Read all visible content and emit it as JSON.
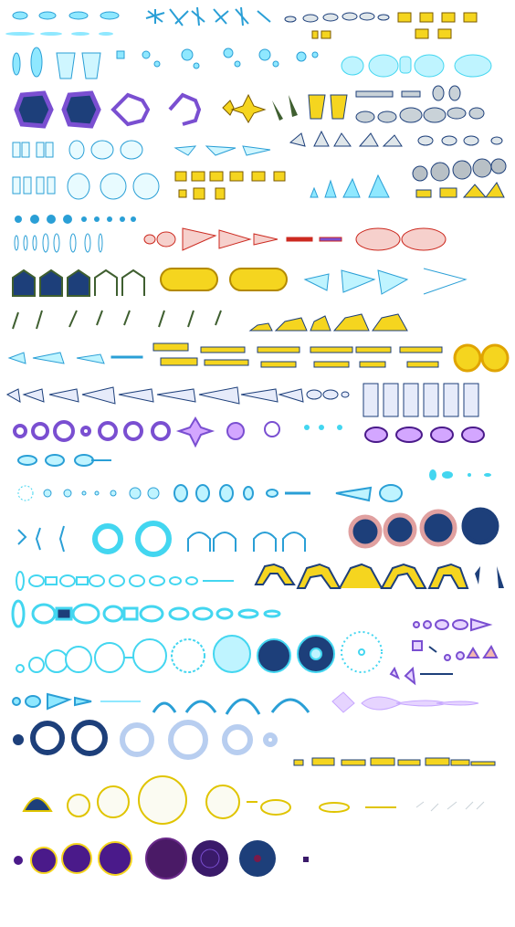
{
  "title": "",
  "palette": {
    "cyan_light": "#bff4ff",
    "cyan": "#43d6f0",
    "cyan_dark": "#2a9fd6",
    "blue_dark": "#1d3f7a",
    "navy": "#0f2f66",
    "purple": "#7a4fd1",
    "purple_dark": "#4a1a8a",
    "violet": "#d3a6ff",
    "yellow": "#f5d51f",
    "gold": "#e0a400",
    "red": "#cc2a20",
    "pink": "#f3b7b0",
    "green_dark": "#3f5f30",
    "gray": "#9aa6b0",
    "white": "#ffffff"
  },
  "sprite_rows": [
    {
      "name": "row-01",
      "items": [
        "orb",
        "orb",
        "orb",
        "orb",
        "spark",
        "spark",
        "spark",
        "spark",
        "spark",
        "blob",
        "blob",
        "blob",
        "blob",
        "blob",
        "block",
        "block",
        "block",
        "block"
      ]
    },
    {
      "name": "row-02",
      "items": [
        "lance",
        "lance",
        "lance",
        "flame",
        "flame",
        "flame",
        "crystal",
        "crystal",
        "crystal",
        "crystal",
        "burst",
        "burst",
        "burst",
        "burst"
      ]
    },
    {
      "name": "row-03",
      "items": [
        "dark-ring",
        "dark-ring",
        "claw",
        "claw",
        "star",
        "star",
        "yellow-tooth",
        "yellow-tooth",
        "rock",
        "rock",
        "rock"
      ]
    },
    {
      "name": "row-04",
      "items": [
        "ice",
        "ice",
        "ice",
        "wind",
        "wind",
        "wind",
        "rock",
        "rock",
        "rock"
      ]
    },
    {
      "name": "row-05",
      "items": [
        "ice",
        "ice",
        "ice",
        "gold-dot",
        "gold-dot",
        "gold-dot",
        "blue-flame",
        "blue-flame",
        "gray-rock",
        "gray-rock"
      ]
    },
    {
      "name": "row-06",
      "items": [
        "swirl",
        "swirl",
        "swirl",
        "dot",
        "dot",
        "red-eye",
        "red-eye",
        "red-eye",
        "missile",
        "missile"
      ]
    },
    {
      "name": "row-07",
      "items": [
        "dark-cap",
        "dark-cap",
        "dark-cap",
        "gold-capsule",
        "gold-capsule",
        "cyan-burst",
        "cyan-burst",
        "cyan-burst"
      ]
    },
    {
      "name": "row-08",
      "items": [
        "grass",
        "grass",
        "grass",
        "grass",
        "fire-wave",
        "fire-wave",
        "fire-wave"
      ]
    },
    {
      "name": "row-09",
      "items": [
        "cyan-fish",
        "cyan-fish",
        "yellow-bar",
        "yellow-bar",
        "yellow-bar",
        "yellow-ring",
        "yellow-ring"
      ]
    },
    {
      "name": "row-10",
      "items": [
        "drill",
        "drill",
        "drill",
        "drill",
        "pillar",
        "pillar",
        "pillar"
      ]
    },
    {
      "name": "row-11",
      "items": [
        "purple-ring",
        "purple-ring",
        "purple-ring",
        "purple-star",
        "purple-star",
        "purple-cloud"
      ]
    },
    {
      "name": "row-12",
      "items": [
        "cyan-seed",
        "cyan-seed",
        "cyan-seed",
        "cyan-small"
      ]
    },
    {
      "name": "row-13",
      "items": [
        "dot-ring",
        "gear",
        "gear",
        "tear",
        "tear",
        "tear"
      ]
    },
    {
      "name": "row-14",
      "items": [
        "wave",
        "ring",
        "ring",
        "arch",
        "arch",
        "dark-blob",
        "dark-blob",
        "dark-blob"
      ]
    },
    {
      "name": "row-15",
      "items": [
        "chain",
        "chain",
        "yellow-arch",
        "yellow-arch",
        "yellow-arch"
      ]
    },
    {
      "name": "row-16",
      "items": [
        "chain-big",
        "chain-big",
        "violet-drop",
        "violet-drop"
      ]
    },
    {
      "name": "row-17",
      "items": [
        "bubble",
        "bubble",
        "bubble",
        "bubble",
        "bubble",
        "bubble"
      ]
    },
    {
      "name": "row-18",
      "items": [
        "splash",
        "splash",
        "splash",
        "lilac-comet"
      ]
    },
    {
      "name": "row-19",
      "items": [
        "blue-ring",
        "blue-ring",
        "pale-ring",
        "pale-ring"
      ]
    },
    {
      "name": "row-20",
      "items": [
        "yellow-chain"
      ]
    },
    {
      "name": "row-21",
      "items": [
        "sun",
        "sun",
        "sun",
        "sun",
        "spindle"
      ]
    },
    {
      "name": "row-22",
      "items": [
        "plasma",
        "plasma",
        "plasma",
        "void",
        "void",
        "void"
      ]
    }
  ]
}
